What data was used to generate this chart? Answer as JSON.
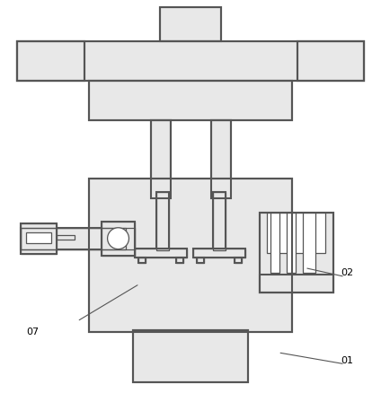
{
  "bg_color": "#ffffff",
  "line_color": "#555555",
  "fill_light": "#e8e8e8",
  "fill_white": "#ffffff",
  "lw": 1.5,
  "lw_thin": 0.9,
  "label_07": "07",
  "label_02": "02",
  "label_01": "01"
}
